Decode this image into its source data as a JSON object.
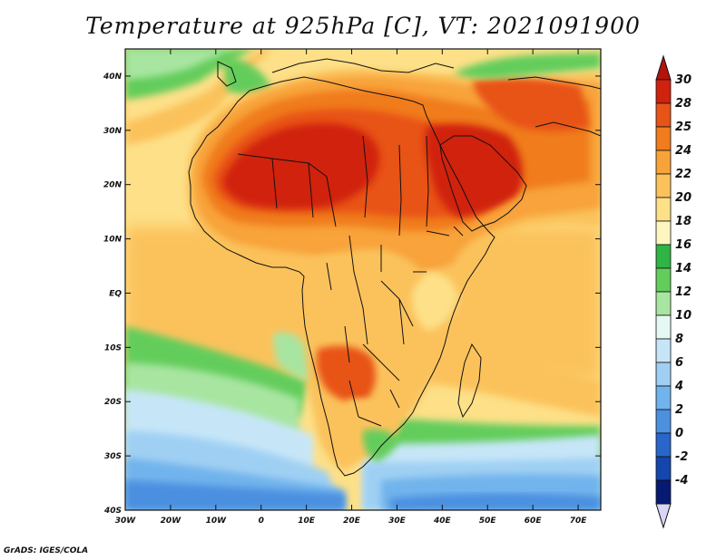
{
  "title": "Temperature at 925hPa [C], VT: 2021091900",
  "credit": "GrADS: IGES/COLA",
  "map": {
    "variable": "Temperature",
    "level": "925hPa",
    "units": "C",
    "valid_time": "2021091900",
    "lon_range": [
      -30,
      75
    ],
    "lat_range": [
      -40,
      45
    ],
    "lat_ticks": [
      "40N",
      "30N",
      "20N",
      "10N",
      "EQ",
      "10S",
      "20S",
      "30S",
      "40S"
    ],
    "lon_ticks": [
      "30W",
      "20W",
      "10W",
      "0",
      "10E",
      "20E",
      "30E",
      "40E",
      "50E",
      "60E",
      "70E"
    ]
  },
  "colorbar": {
    "labels": [
      "30",
      "28",
      "25",
      "24",
      "22",
      "20",
      "18",
      "16",
      "14",
      "12",
      "10",
      "8",
      "6",
      "4",
      "2",
      "0",
      "-2",
      "-4"
    ],
    "colors": [
      "#d0220e",
      "#e85318",
      "#f07c1e",
      "#f8a33a",
      "#fbc25c",
      "#fde088",
      "#fdf6c0",
      "#2fb446",
      "#63cd5c",
      "#a8e5a0",
      "#e6f8f3",
      "#c6e6f8",
      "#9fd0f3",
      "#71b3ec",
      "#4c90e0",
      "#2866cc",
      "#1446ad",
      "#071a72"
    ],
    "top_arrow_color": "#b3130b",
    "bottom_arrow_color": "#d8d6f6"
  },
  "colors": {
    "ocean_base": "#fde088",
    "coast_line": "#111111"
  }
}
